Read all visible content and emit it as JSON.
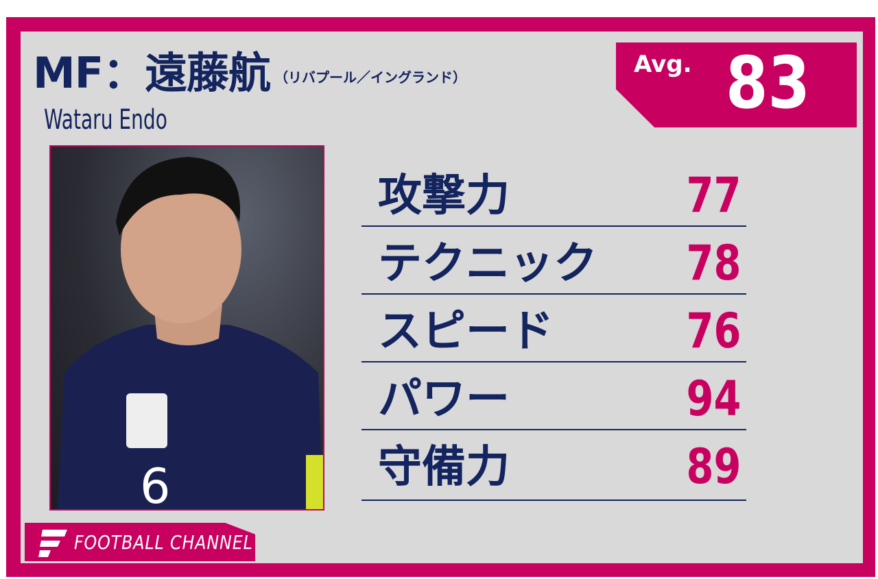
{
  "colors": {
    "accent": "#c8005f",
    "navy": "#13245e",
    "background": "#d9d9d9"
  },
  "player": {
    "title": "MF：遠藤航",
    "club": "（リバプール／イングランド）",
    "name_en": "Wataru Endo",
    "photo_icon": "player-photo"
  },
  "average": {
    "label": "Avg.",
    "value": "83"
  },
  "stats": [
    {
      "label": "攻撃力",
      "value": "77"
    },
    {
      "label": "テクニック",
      "value": "78"
    },
    {
      "label": "スピード",
      "value": "76"
    },
    {
      "label": "パワー",
      "value": "94"
    },
    {
      "label": "守備力",
      "value": "89"
    }
  ],
  "logo": {
    "text": "FOOTBALL CHANNEL"
  }
}
